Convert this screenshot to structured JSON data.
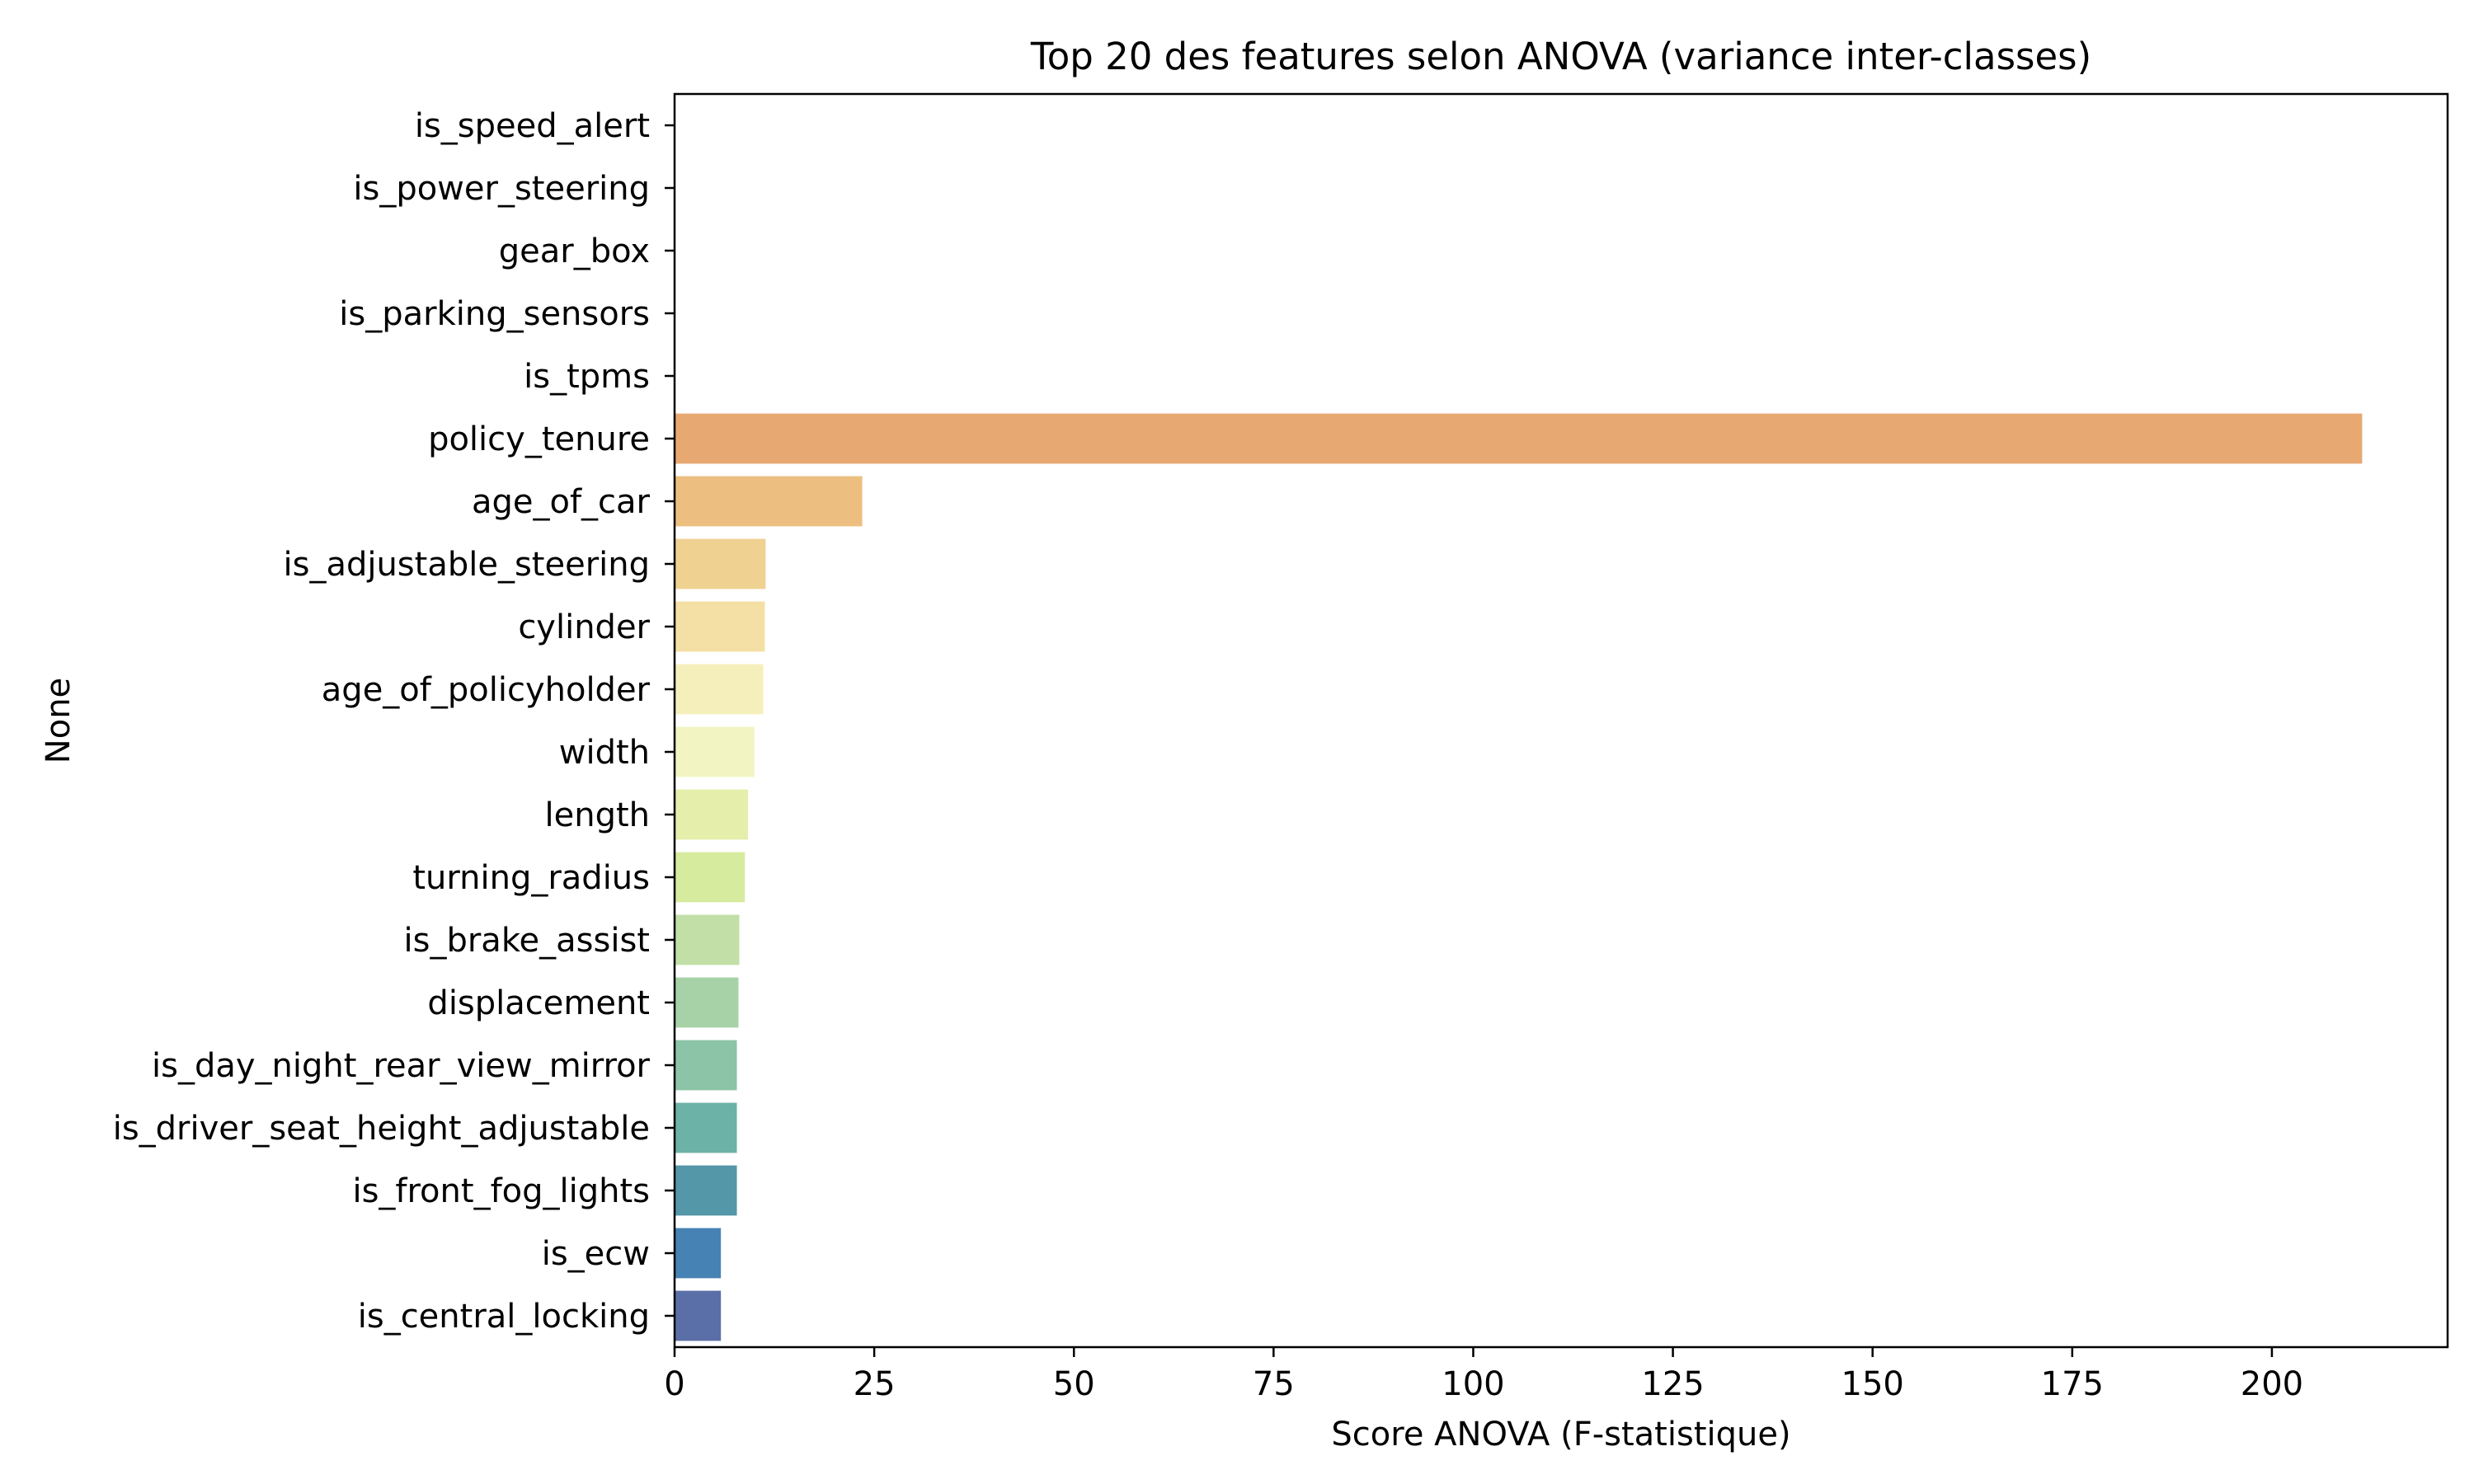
{
  "chart_data": {
    "type": "bar",
    "orientation": "horizontal",
    "title": "Top 20 des features selon ANOVA (variance inter-classes)",
    "xlabel": "Score ANOVA (F-statistique)",
    "ylabel": "None",
    "xlim": [
      0,
      222
    ],
    "xticks": [
      0,
      25,
      50,
      75,
      100,
      125,
      150,
      175,
      200
    ],
    "categories": [
      "is_speed_alert",
      "is_power_steering",
      "gear_box",
      "is_parking_sensors",
      "is_tpms",
      "policy_tenure",
      "age_of_car",
      "is_adjustable_steering",
      "cylinder",
      "age_of_policyholder",
      "width",
      "length",
      "turning_radius",
      "is_brake_assist",
      "displacement",
      "is_day_night_rear_view_mirror",
      "is_driver_seat_height_adjustable",
      "is_front_fog_lights",
      "is_ecw",
      "is_central_locking"
    ],
    "values": [
      0,
      0,
      0,
      0,
      0,
      211.3,
      23.5,
      11.4,
      11.3,
      11.1,
      10.0,
      9.2,
      8.8,
      8.1,
      8.0,
      7.8,
      7.8,
      7.8,
      5.8,
      5.8
    ],
    "colors": [
      "#9e0142",
      "#c9304c",
      "#e35847",
      "#f6804e",
      "#fba65f",
      "#e8a872",
      "#ecbf80",
      "#efd191",
      "#f4e0a4",
      "#f5f0bb",
      "#f2f5c2",
      "#e5eeab",
      "#d6eb9e",
      "#c1dfa6",
      "#a7d2a7",
      "#8bc4a6",
      "#6db2a6",
      "#5497a8",
      "#4682b4",
      "#5a6fa8"
    ],
    "grid": false,
    "legend": "none"
  }
}
